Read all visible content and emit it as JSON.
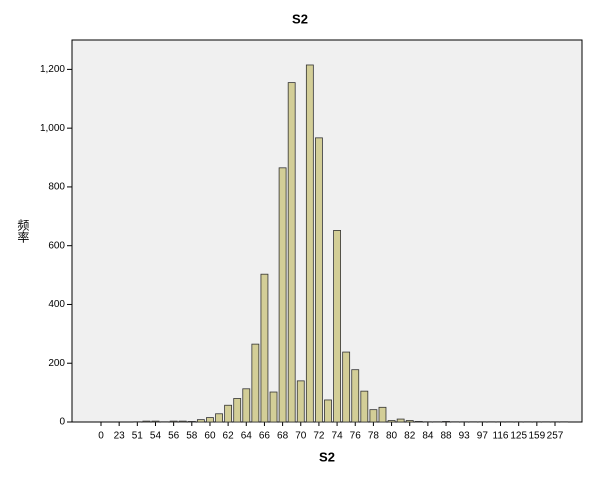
{
  "chart_data": {
    "type": "bar",
    "title": "S2",
    "x_label": "S2",
    "y_label": "频率",
    "categories": [
      "0",
      null,
      "23",
      null,
      "51",
      null,
      "54",
      null,
      "56",
      null,
      "58",
      null,
      "60",
      null,
      "62",
      null,
      "64",
      null,
      "66",
      null,
      "68",
      null,
      "70",
      null,
      "72",
      null,
      "74",
      null,
      "76",
      null,
      "78",
      null,
      "80",
      null,
      "82",
      null,
      "84",
      null,
      "88",
      null,
      "93",
      null,
      "97",
      null,
      "116",
      null,
      "125",
      null,
      "159",
      null,
      "257",
      null
    ],
    "values": [
      0,
      0,
      0,
      0,
      1,
      3,
      3,
      1,
      3,
      3,
      2,
      8,
      15,
      28,
      57,
      80,
      113,
      265,
      503,
      102,
      865,
      1155,
      140,
      1215,
      967,
      75,
      652,
      238,
      178,
      105,
      42,
      50,
      5,
      10,
      5,
      2,
      1,
      1,
      2,
      1,
      1,
      1,
      1,
      1,
      1,
      1,
      1,
      1,
      1,
      1,
      1,
      1
    ],
    "color": "#d3ce97",
    "ylim": [
      0,
      1300
    ],
    "yticks": [
      0,
      200,
      400,
      600,
      800,
      {
        "value": 1000,
        "label": "1,000"
      },
      {
        "value": 1200,
        "label": "1,200"
      }
    ]
  }
}
